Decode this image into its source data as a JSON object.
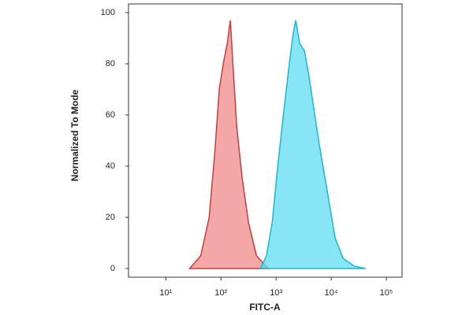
{
  "chart_data": {
    "type": "histogram-overlay",
    "x_label": "FITC-A",
    "y_label": "Normalized To Mode",
    "xscale": "log",
    "xlim": [
      2.1,
      193000
    ],
    "ylim": [
      -3.4,
      103.4
    ],
    "xticks": [
      {
        "value": 10,
        "label": "10¹"
      },
      {
        "value": 100,
        "label": "10²"
      },
      {
        "value": 1000,
        "label": "10³"
      },
      {
        "value": 10000,
        "label": "10⁴"
      },
      {
        "value": 100000,
        "label": "10⁵"
      }
    ],
    "yticks": [
      0,
      20,
      40,
      60,
      80,
      100
    ],
    "series": [
      {
        "color": "#f08a8a",
        "stroke": "#c0403f",
        "x": [
          27,
          43,
          61,
          77,
          93,
          110,
          130,
          148,
          170,
          194,
          243,
          316,
          440,
          720
        ],
        "values": [
          0,
          5,
          20,
          45,
          70,
          80,
          88,
          97,
          75,
          55,
          35,
          18,
          5,
          0
        ]
      },
      {
        "color": "#5fdcf2",
        "stroke": "#22b5c9",
        "x": [
          520,
          670,
          850,
          1070,
          1390,
          1740,
          2050,
          2270,
          2680,
          3270,
          3960,
          4870,
          6110,
          8510,
          11800,
          16400,
          25900,
          42300
        ],
        "values": [
          0,
          5,
          18,
          40,
          62,
          80,
          92,
          97,
          88,
          85,
          75,
          62,
          48,
          30,
          12,
          4,
          1,
          0
        ]
      }
    ]
  }
}
